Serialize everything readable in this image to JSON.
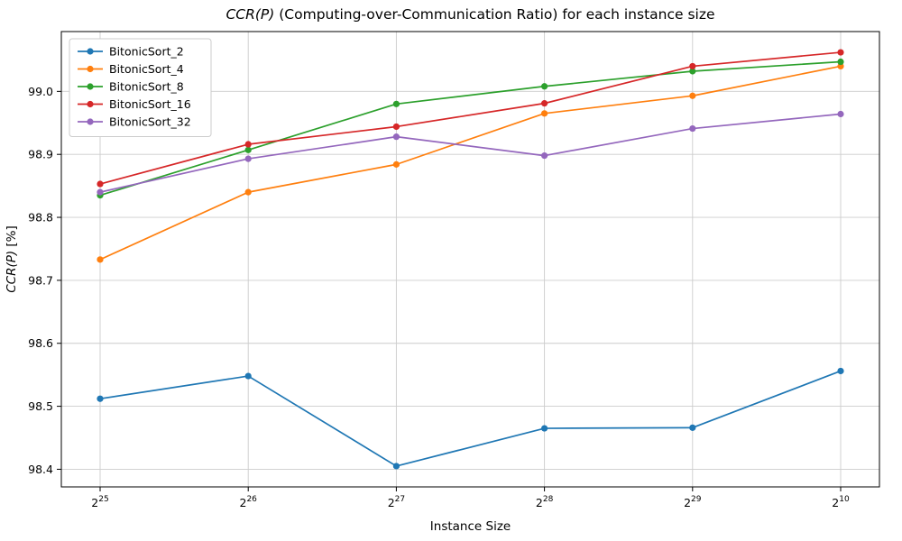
{
  "chart_data": {
    "type": "line",
    "title_segments": [
      {
        "text": "CCR(P)",
        "italic": true
      },
      {
        "text": " (Computing-over-Communication Ratio) for each instance size",
        "italic": false
      }
    ],
    "xlabel": "Instance Size",
    "ylabel_segments": [
      {
        "text": "CCR(P)",
        "italic": true
      },
      {
        "text": " [%]",
        "italic": false
      }
    ],
    "x_tick_labels": [
      {
        "base": "2",
        "exp": "25"
      },
      {
        "base": "2",
        "exp": "26"
      },
      {
        "base": "2",
        "exp": "27"
      },
      {
        "base": "2",
        "exp": "28"
      },
      {
        "base": "2",
        "exp": "29"
      },
      {
        "base": "2",
        "exp": "10"
      }
    ],
    "y_ticks": [
      98.4,
      98.5,
      98.6,
      98.7,
      98.8,
      98.9,
      99.0
    ],
    "ylim": [
      98.372,
      99.095
    ],
    "grid": true,
    "legend_position": "upper left",
    "series": [
      {
        "name": "BitonicSort_2",
        "color": "#1f77b4",
        "values": [
          98.512,
          98.548,
          98.405,
          98.465,
          98.466,
          98.556
        ]
      },
      {
        "name": "BitonicSort_4",
        "color": "#ff7f0e",
        "values": [
          98.733,
          98.84,
          98.884,
          98.965,
          98.993,
          99.04
        ]
      },
      {
        "name": "BitonicSort_8",
        "color": "#2ca02c",
        "values": [
          98.835,
          98.907,
          98.98,
          99.008,
          99.032,
          99.047
        ]
      },
      {
        "name": "BitonicSort_16",
        "color": "#d62728",
        "values": [
          98.853,
          98.916,
          98.944,
          98.981,
          99.04,
          99.062
        ]
      },
      {
        "name": "BitonicSort_32",
        "color": "#9467bd",
        "values": [
          98.84,
          98.893,
          98.928,
          98.898,
          98.941,
          98.964
        ]
      }
    ],
    "style": {
      "grid_color": "#cccccc",
      "spine_color": "#000000",
      "background": "#ffffff",
      "legend_border": "#cccccc"
    }
  }
}
